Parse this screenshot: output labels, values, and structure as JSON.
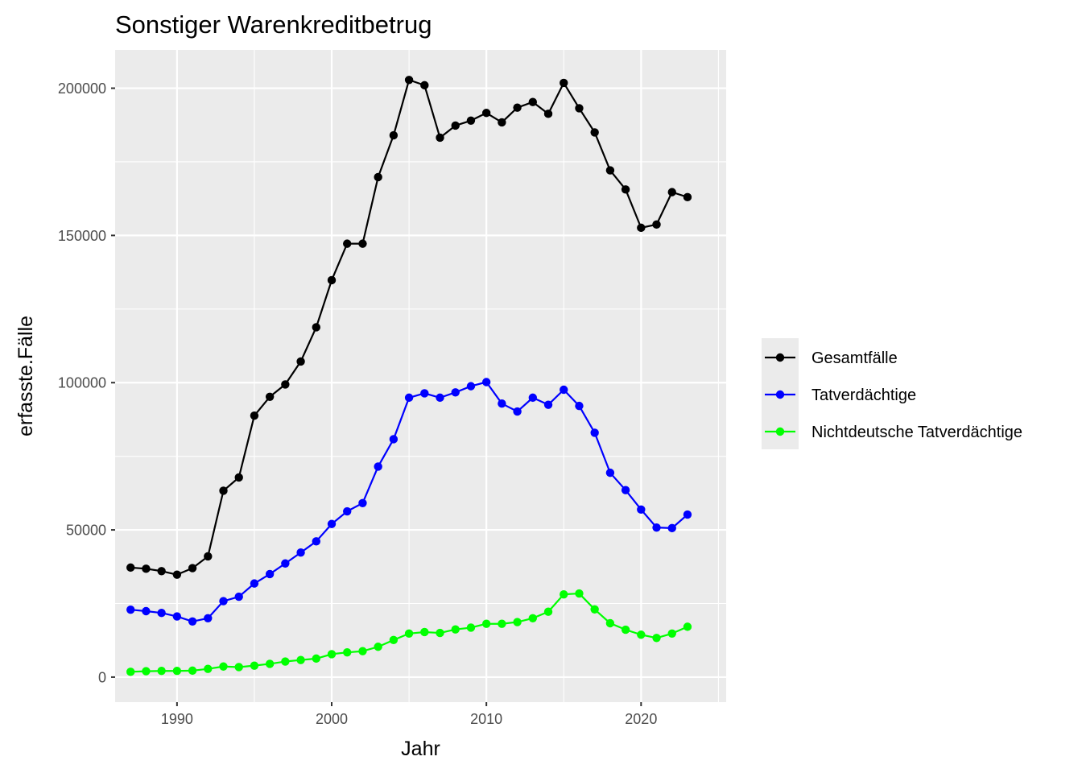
{
  "chart_data": {
    "type": "line",
    "title": "Sonstiger Warenkreditbetrug",
    "xlabel": "Jahr",
    "ylabel": "erfasste.Fälle",
    "xlim": [
      1986,
      2025.5
    ],
    "ylim": [
      -8500,
      213000
    ],
    "x_ticks": [
      1990,
      2000,
      2010,
      2020
    ],
    "x_tick_labels": [
      "1990",
      "2000",
      "2010",
      "2020"
    ],
    "y_ticks": [
      0,
      50000,
      100000,
      150000,
      200000
    ],
    "y_tick_labels": [
      "0",
      "50000",
      "100000",
      "150000",
      "200000"
    ],
    "grid": true,
    "legend_position": "right",
    "x": [
      1987,
      1988,
      1989,
      1990,
      1991,
      1992,
      1993,
      1994,
      1995,
      1996,
      1997,
      1998,
      1999,
      2000,
      2001,
      2002,
      2003,
      2004,
      2005,
      2006,
      2007,
      2008,
      2009,
      2010,
      2011,
      2012,
      2013,
      2014,
      2015,
      2016,
      2017,
      2018,
      2019,
      2020,
      2021,
      2022,
      2023
    ],
    "series": [
      {
        "name": "Gesamtfälle",
        "color": "#000000",
        "values": [
          37200,
          36800,
          36000,
          34800,
          37000,
          41000,
          63300,
          67800,
          88800,
          95200,
          99400,
          107200,
          118800,
          134800,
          147200,
          147200,
          169800,
          184000,
          202800,
          201000,
          183200,
          187300,
          189000,
          191600,
          188400,
          193400,
          195300,
          191300,
          201800,
          193200,
          185000,
          172100,
          165600,
          152600,
          153700,
          164700,
          163000
        ]
      },
      {
        "name": "Tatverdächtige",
        "color": "#0000ff",
        "values": [
          22900,
          22400,
          21800,
          20600,
          18900,
          20000,
          25800,
          27300,
          31800,
          35000,
          38600,
          42300,
          46100,
          52000,
          56300,
          59100,
          71500,
          80800,
          94900,
          96400,
          94900,
          96700,
          98800,
          100200,
          92900,
          90200,
          94900,
          92500,
          97600,
          92100,
          83000,
          69400,
          63500,
          56900,
          50800,
          50600,
          55200
        ]
      },
      {
        "name": "Nichtdeutsche Tatverdächtige",
        "color": "#00ff00",
        "values": [
          1800,
          2000,
          2100,
          2100,
          2200,
          2800,
          3600,
          3400,
          3900,
          4500,
          5300,
          5800,
          6300,
          7800,
          8400,
          8800,
          10300,
          12600,
          14800,
          15300,
          15000,
          16200,
          16800,
          18100,
          18100,
          18700,
          20000,
          22200,
          28100,
          28400,
          23000,
          18300,
          16100,
          14400,
          13300,
          14800,
          17100
        ]
      }
    ]
  }
}
